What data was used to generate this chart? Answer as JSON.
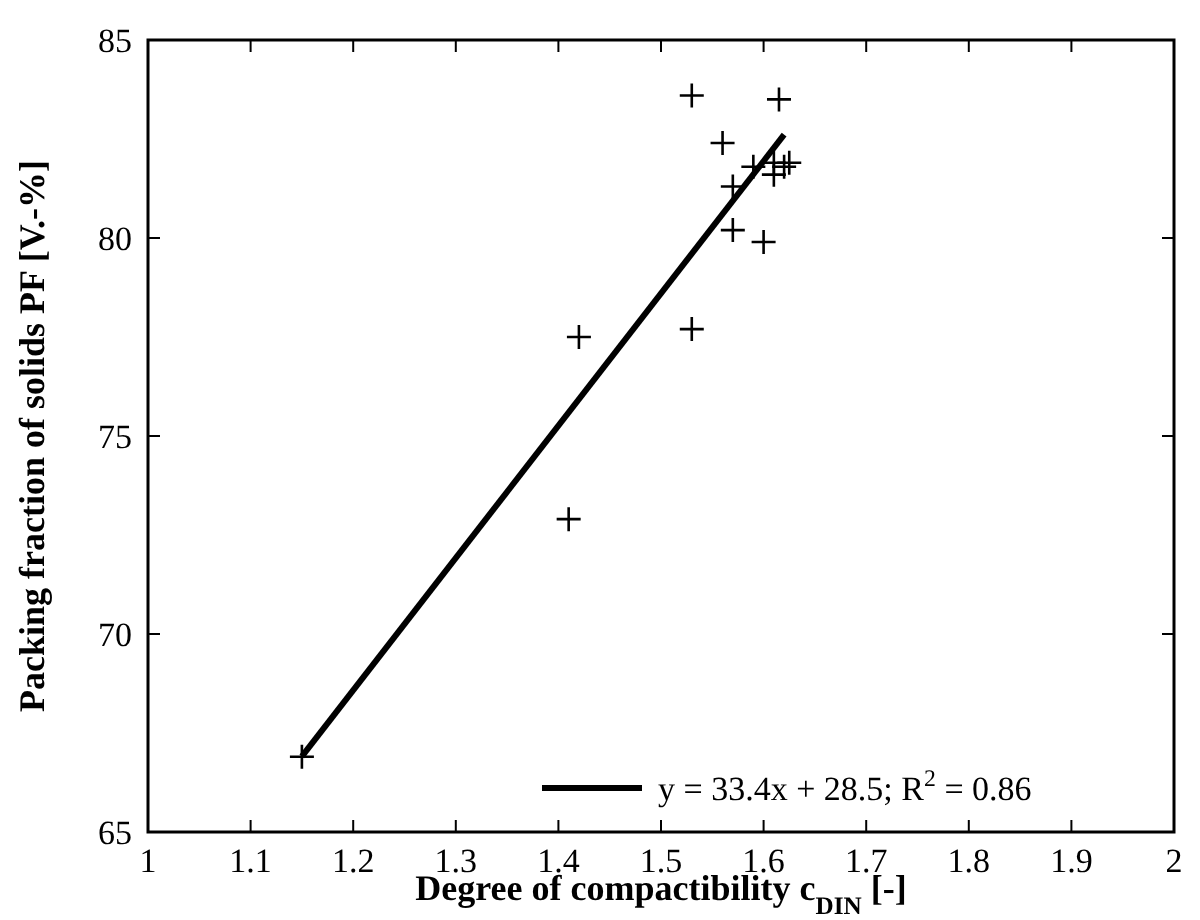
{
  "chart_data": {
    "type": "scatter",
    "xlabel": "Degree of compactibility c$_{DIN}$ [-]",
    "ylabel": "Packing fraction of solids PF [V.-%]",
    "xlim": [
      1,
      2
    ],
    "ylim": [
      65,
      85
    ],
    "xticks": [
      1,
      1.1,
      1.2,
      1.3,
      1.4,
      1.5,
      1.6,
      1.7,
      1.8,
      1.9,
      2
    ],
    "yticks": [
      65,
      70,
      75,
      80,
      85
    ],
    "grid": false,
    "legend": "bottom right",
    "series": [
      {
        "color": "#000000",
        "marker": "cross",
        "x": [
          1.15,
          1.41,
          1.42,
          1.53,
          1.53,
          1.56,
          1.57,
          1.57,
          1.59,
          1.6,
          1.61,
          1.61,
          1.615,
          1.62,
          1.625
        ],
        "values": [
          66.9,
          72.9,
          77.5,
          77.7,
          83.6,
          82.4,
          81.3,
          80.2,
          81.8,
          79.9,
          81.6,
          81.9,
          83.5,
          81.8,
          81.9
        ]
      },
      {
        "type": "line",
        "name": "y = 33.4x + 28.5; R$^{2}$ = 0.86",
        "color": "#000000",
        "line_style": "solid",
        "x": [
          1.15,
          1.62
        ],
        "values": [
          66.91,
          82.61
        ]
      }
    ]
  }
}
